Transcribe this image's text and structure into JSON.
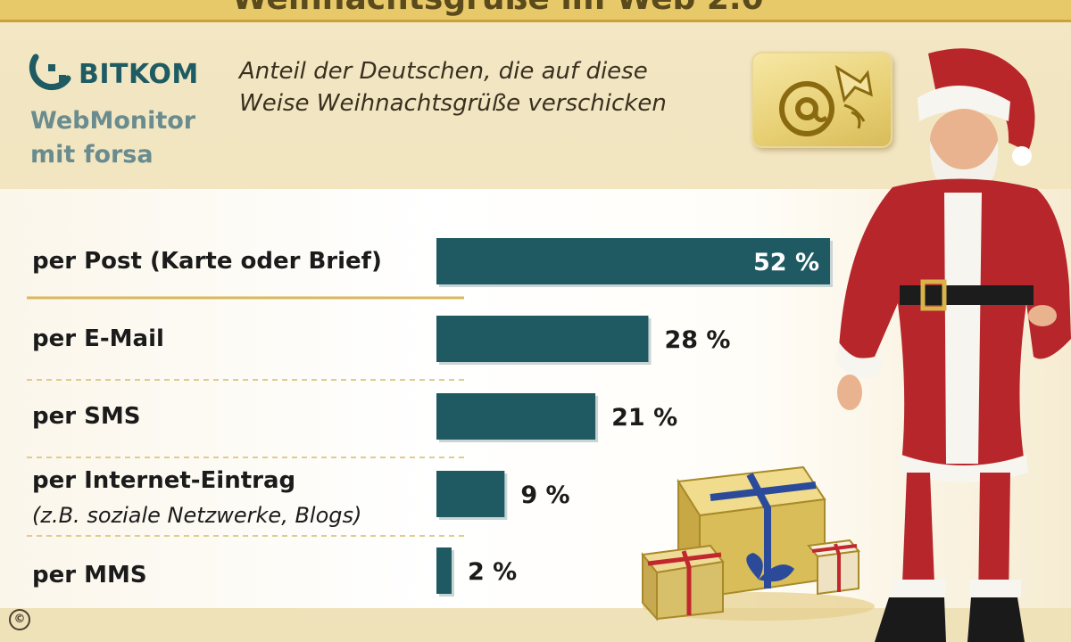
{
  "header": {
    "title_cut": "Weihnachtsgrüße im Web 2.0",
    "logo_brand": "BITKOM",
    "logo_sub1": "WebMonitor",
    "logo_sub2": "mit forsa",
    "subtitle_line1": "Anteil der Deutschen, die auf diese",
    "subtitle_line2": "Weise Weihnachtsgrüße verschicken"
  },
  "footer": {
    "copyright": "©"
  },
  "colors": {
    "bar": "#1f5a63",
    "band": "#e8c96a",
    "accent": "#c9a23a"
  },
  "icons": [
    "bitkom-logo-icon",
    "at-sign-trumpet-icon",
    "santa-claus-icon",
    "gift-boxes-icon",
    "copyright-icon"
  ],
  "chart_data": {
    "type": "bar",
    "orientation": "horizontal",
    "categories": [
      "per Post (Karte oder Brief)",
      "per E-Mail",
      "per SMS",
      "per Internet-Eintrag",
      "per MMS"
    ],
    "category_notes": [
      "",
      "",
      "",
      "(z.B. soziale Netzwerke, Blogs)",
      ""
    ],
    "values": [
      52,
      28,
      21,
      9,
      2
    ],
    "value_labels": [
      "52 %",
      "28 %",
      "21 %",
      "9 %",
      "2 %"
    ],
    "title": "Anteil der Deutschen, die auf diese Weise Weihnachtsgrüße verschicken",
    "xlabel": "",
    "ylabel": "",
    "xlim": [
      0,
      52
    ],
    "grid": false,
    "legend": "none"
  }
}
